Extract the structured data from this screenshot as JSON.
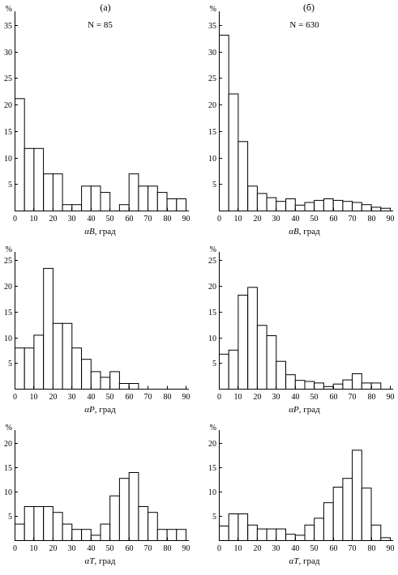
{
  "column_headers": [
    "(а)",
    "(б)"
  ],
  "panels": [
    {
      "id": "a1",
      "header": "(а)",
      "n_label": "N = 85",
      "unit": "%",
      "xlabel_sym": "αB",
      "xlabel_rest": ", град"
    },
    {
      "id": "b1",
      "header": "(б)",
      "n_label": "N = 630",
      "unit": "%",
      "xlabel_sym": "αB",
      "xlabel_rest": ", град"
    },
    {
      "id": "a2",
      "unit": "%",
      "xlabel_sym": "αP",
      "xlabel_rest": ", град"
    },
    {
      "id": "b2",
      "unit": "%",
      "xlabel_sym": "αP",
      "xlabel_rest": ", град"
    },
    {
      "id": "a3",
      "unit": "%",
      "xlabel_sym": "αT",
      "xlabel_rest": ", град"
    },
    {
      "id": "b3",
      "unit": "%",
      "xlabel_sym": "αT",
      "xlabel_rest": ", град"
    }
  ],
  "chart_data": [
    {
      "type": "bar",
      "panel": "a1",
      "bin_width": 5,
      "x_ticks": [
        0,
        10,
        20,
        30,
        40,
        50,
        60,
        70,
        80,
        90
      ],
      "xlim": [
        0,
        90
      ],
      "ylim": [
        0,
        37
      ],
      "y_ticks": [
        5,
        10,
        15,
        20,
        25,
        30,
        35
      ],
      "values": [
        21.2,
        11.8,
        11.8,
        7.0,
        7.0,
        1.2,
        1.2,
        4.7,
        4.7,
        3.5,
        0,
        1.2,
        7.0,
        4.7,
        4.7,
        3.5,
        2.3,
        2.3
      ]
    },
    {
      "type": "bar",
      "panel": "b1",
      "bin_width": 5,
      "x_ticks": [
        0,
        10,
        20,
        30,
        40,
        50,
        60,
        70,
        80,
        90
      ],
      "xlim": [
        0,
        90
      ],
      "ylim": [
        0,
        37
      ],
      "y_ticks": [
        5,
        10,
        15,
        20,
        25,
        30,
        35
      ],
      "values": [
        33.2,
        22.1,
        13.1,
        4.7,
        3.3,
        2.5,
        1.8,
        2.3,
        1.1,
        1.6,
        2.0,
        2.3,
        2.0,
        1.8,
        1.6,
        1.2,
        0.7,
        0.5
      ]
    },
    {
      "type": "bar",
      "panel": "a2",
      "bin_width": 5,
      "x_ticks": [
        0,
        10,
        20,
        30,
        40,
        50,
        60,
        70,
        80,
        90
      ],
      "xlim": [
        0,
        90
      ],
      "ylim": [
        0,
        26
      ],
      "y_ticks": [
        5,
        10,
        15,
        20,
        25
      ],
      "values": [
        8.0,
        8.0,
        10.5,
        23.5,
        12.8,
        12.8,
        8.0,
        5.8,
        3.4,
        2.3,
        3.4,
        1.1,
        1.1
      ]
    },
    {
      "type": "bar",
      "panel": "b2",
      "bin_width": 5,
      "x_ticks": [
        0,
        10,
        20,
        30,
        40,
        50,
        60,
        70,
        80,
        90
      ],
      "xlim": [
        0,
        90
      ],
      "ylim": [
        0,
        26
      ],
      "y_ticks": [
        5,
        10,
        15,
        20,
        25
      ],
      "values": [
        6.8,
        7.6,
        18.3,
        19.8,
        12.4,
        10.4,
        5.4,
        2.8,
        1.7,
        1.5,
        1.2,
        0.5,
        1.0,
        1.8,
        3.0,
        1.2,
        1.2
      ]
    },
    {
      "type": "bar",
      "panel": "a3",
      "bin_width": 5,
      "x_ticks": [
        0,
        10,
        20,
        30,
        40,
        50,
        60,
        70,
        80,
        90
      ],
      "xlim": [
        0,
        90
      ],
      "ylim": [
        0,
        22
      ],
      "y_ticks": [
        5,
        10,
        15,
        20
      ],
      "values": [
        3.4,
        7.0,
        7.0,
        7.0,
        5.8,
        3.4,
        2.3,
        2.3,
        1.1,
        3.4,
        9.2,
        12.8,
        14.0,
        7.0,
        5.8,
        2.3,
        2.3,
        2.3
      ]
    },
    {
      "type": "bar",
      "panel": "b3",
      "bin_width": 5,
      "x_ticks": [
        0,
        10,
        20,
        30,
        40,
        50,
        60,
        70,
        80,
        90
      ],
      "xlim": [
        0,
        90
      ],
      "ylim": [
        0,
        22
      ],
      "y_ticks": [
        5,
        10,
        15,
        20
      ],
      "values": [
        3.0,
        5.5,
        5.5,
        3.2,
        2.4,
        2.4,
        2.4,
        1.3,
        1.1,
        3.2,
        4.6,
        7.8,
        11.0,
        12.8,
        18.6,
        10.8,
        3.2,
        0.6
      ]
    }
  ]
}
